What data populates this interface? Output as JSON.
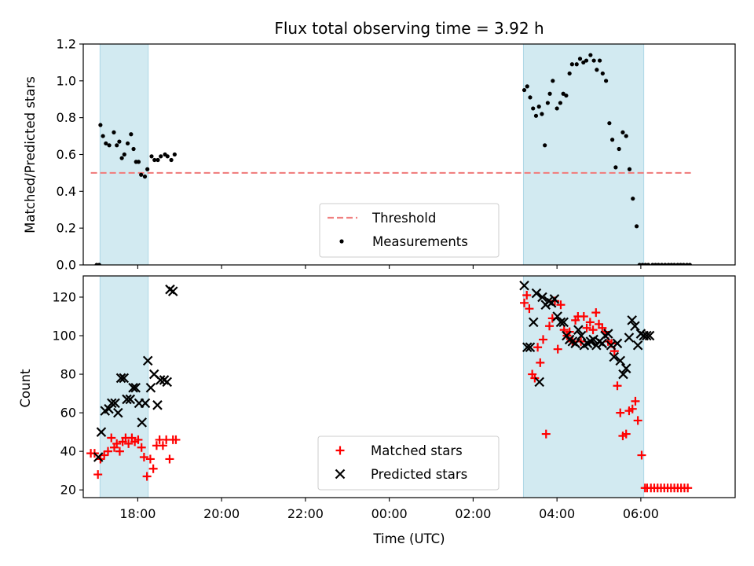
{
  "colors": {
    "shade": "#add8e6",
    "threshold": "#f08080",
    "measure": "#000000",
    "matched": "#ff0000",
    "predicted": "#000000"
  },
  "chart_data": [
    {
      "type": "scatter",
      "title": "Flux total observing time = 3.92 h",
      "xlabel": "",
      "ylabel": "Matched/Predicted stars",
      "xlim": [
        16.7,
        32.25
      ],
      "ylim": [
        0,
        1.2
      ],
      "y_ticks": [
        0.0,
        0.2,
        0.4,
        0.6,
        0.8,
        1.0,
        1.2
      ],
      "y_tick_labels": [
        "0.0",
        "0.2",
        "0.4",
        "0.6",
        "0.8",
        "1.0",
        "1.2"
      ],
      "grid": false,
      "legend_position": "lower-center",
      "shaded_intervals": [
        [
          17.1,
          18.25
        ],
        [
          27.2,
          30.07
        ]
      ],
      "threshold": {
        "name": "Threshold",
        "value": 0.5,
        "x_range": [
          16.88,
          31.2
        ]
      },
      "series": [
        {
          "name": "Measurements",
          "x": [
            17.02,
            17.08,
            17.11,
            17.17,
            17.24,
            17.32,
            17.43,
            17.5,
            17.56,
            17.62,
            17.68,
            17.76,
            17.84,
            17.9,
            17.96,
            18.02,
            18.08,
            18.17,
            18.23,
            18.33,
            18.4,
            18.48,
            18.55,
            18.65,
            18.71,
            18.8,
            18.88,
            27.22,
            27.29,
            27.36,
            27.43,
            27.5,
            27.57,
            27.64,
            27.71,
            27.78,
            27.83,
            27.9,
            28.0,
            28.08,
            28.15,
            28.22,
            28.3,
            28.36,
            28.47,
            28.55,
            28.63,
            28.7,
            28.8,
            28.88,
            28.95,
            29.02,
            29.09,
            29.17,
            29.25,
            29.32,
            29.4,
            29.48,
            29.57,
            29.65,
            29.73,
            29.81,
            29.9,
            29.97,
            30.04,
            30.11,
            30.18,
            30.28,
            30.35,
            30.42,
            30.5,
            30.58,
            30.66,
            30.73,
            30.8,
            30.88,
            30.95,
            31.02,
            31.1,
            31.17
          ],
          "y": [
            0.0,
            0.0,
            0.76,
            0.7,
            0.66,
            0.65,
            0.72,
            0.65,
            0.67,
            0.58,
            0.6,
            0.66,
            0.71,
            0.63,
            0.56,
            0.56,
            0.49,
            0.48,
            0.52,
            0.59,
            0.57,
            0.57,
            0.59,
            0.6,
            0.59,
            0.57,
            0.6,
            0.95,
            0.97,
            0.91,
            0.85,
            0.81,
            0.86,
            0.82,
            0.65,
            0.88,
            0.93,
            1.0,
            0.85,
            0.88,
            0.93,
            0.92,
            1.04,
            1.09,
            1.09,
            1.12,
            1.1,
            1.11,
            1.14,
            1.11,
            1.06,
            1.11,
            1.04,
            1.0,
            0.77,
            0.68,
            0.53,
            0.63,
            0.72,
            0.7,
            0.52,
            0.36,
            0.21,
            0.0,
            0.0,
            0.0,
            0.0,
            0.0,
            0.0,
            0.0,
            0.0,
            0.0,
            0.0,
            0.0,
            0.0,
            0.0,
            0.0,
            0.0,
            0.0,
            0.0
          ]
        }
      ]
    },
    {
      "type": "scatter",
      "title": "",
      "xlabel": "Time (UTC)",
      "ylabel": "Count",
      "xlim": [
        16.7,
        32.25
      ],
      "ylim": [
        16,
        131
      ],
      "y_ticks": [
        20,
        40,
        60,
        80,
        100,
        120
      ],
      "y_tick_labels": [
        "20",
        "40",
        "60",
        "80",
        "100",
        "120"
      ],
      "x_ticks": [
        18,
        20,
        22,
        24,
        26,
        28,
        30
      ],
      "x_tick_labels": [
        "18:00",
        "20:00",
        "22:00",
        "00:00",
        "02:00",
        "04:00",
        "06:00"
      ],
      "grid": false,
      "legend_position": "lower-center",
      "shaded_intervals": [
        [
          17.1,
          18.25
        ],
        [
          27.2,
          30.07
        ]
      ],
      "series": [
        {
          "name": "Matched stars",
          "marker": "+",
          "x": [
            16.88,
            16.97,
            17.05,
            17.11,
            17.2,
            17.29,
            17.37,
            17.44,
            17.5,
            17.57,
            17.64,
            17.71,
            17.78,
            17.86,
            17.93,
            18.01,
            18.09,
            18.15,
            18.22,
            18.3,
            18.37,
            18.45,
            18.52,
            18.6,
            18.68,
            18.76,
            18.84,
            18.91,
            27.22,
            27.28,
            27.34,
            27.41,
            27.47,
            27.54,
            27.6,
            27.67,
            27.74,
            27.82,
            27.89,
            27.95,
            28.02,
            28.09,
            28.17,
            28.24,
            28.3,
            28.37,
            28.44,
            28.5,
            28.57,
            28.64,
            28.71,
            28.79,
            28.86,
            28.93,
            29.0,
            29.08,
            29.15,
            29.22,
            29.3,
            29.37,
            29.44,
            29.51,
            29.57,
            29.65,
            29.72,
            29.8,
            29.87,
            29.93,
            30.02,
            30.1,
            30.15,
            30.24,
            30.32,
            30.4,
            30.48,
            30.56,
            30.64,
            30.72,
            30.8,
            30.88,
            30.96,
            31.04,
            31.12
          ],
          "y": [
            39,
            39,
            28,
            36,
            38,
            40,
            47,
            42,
            44,
            40,
            45,
            47,
            44,
            47,
            45,
            46,
            42,
            37,
            27,
            36,
            31,
            43,
            46,
            43,
            46,
            36,
            46,
            46,
            117,
            121,
            114,
            80,
            78,
            94,
            86,
            98,
            49,
            105,
            109,
            118,
            93,
            116,
            103,
            100,
            102,
            97,
            108,
            110,
            97,
            110,
            104,
            107,
            103,
            112,
            106,
            104,
            102,
            97,
            96,
            92,
            74,
            60,
            48,
            49,
            61,
            62,
            66,
            56,
            38,
            21,
            21,
            21,
            21,
            21,
            21,
            21,
            21,
            21,
            21,
            21,
            21,
            21,
            21
          ]
        },
        {
          "name": "Predicted stars",
          "marker": "x",
          "x": [
            17.06,
            17.13,
            17.22,
            17.31,
            17.38,
            17.46,
            17.53,
            17.6,
            17.67,
            17.74,
            17.82,
            17.89,
            17.95,
            18.03,
            18.1,
            18.18,
            18.24,
            18.31,
            18.39,
            18.47,
            18.54,
            18.63,
            18.7,
            18.77,
            18.84,
            27.22,
            27.29,
            27.36,
            27.44,
            27.51,
            27.58,
            27.65,
            27.73,
            27.8,
            27.87,
            27.94,
            28.01,
            28.09,
            28.16,
            28.23,
            28.3,
            28.37,
            28.44,
            28.51,
            28.58,
            28.65,
            28.73,
            28.8,
            28.87,
            28.94,
            29.01,
            29.08,
            29.15,
            29.22,
            29.29,
            29.36,
            29.44,
            29.51,
            29.58,
            29.65,
            29.72,
            29.79,
            29.86,
            29.93,
            30.0,
            30.07,
            30.14,
            30.21
          ],
          "y": [
            37,
            50,
            61,
            62,
            65,
            65,
            60,
            78,
            78,
            67,
            67,
            73,
            73,
            65,
            55,
            65,
            87,
            73,
            80,
            64,
            77,
            77,
            76,
            124,
            123,
            126,
            94,
            94,
            107,
            122,
            76,
            120,
            116,
            118,
            117,
            119,
            110,
            107,
            107,
            100,
            98,
            97,
            96,
            103,
            100,
            95,
            96,
            97,
            98,
            95,
            97,
            96,
            100,
            101,
            95,
            89,
            96,
            87,
            80,
            83,
            99,
            108,
            105,
            95,
            101,
            100,
            100,
            100
          ]
        }
      ]
    }
  ]
}
